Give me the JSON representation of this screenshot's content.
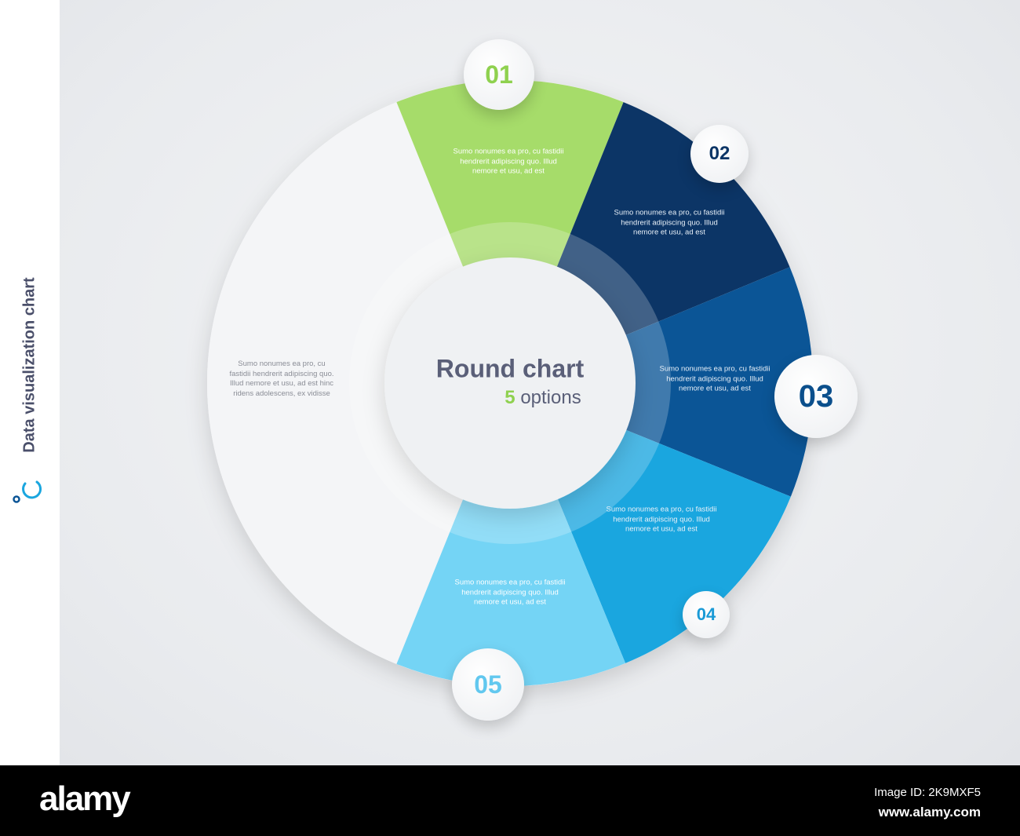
{
  "sidebar": {
    "title": "Data visualization chart",
    "icon": "loading-ring-icon"
  },
  "center": {
    "title": "Round chart",
    "count": "5",
    "count_label": "options"
  },
  "segments": [
    {
      "number": "01",
      "color": "#a6dc6a",
      "num_color": "#8fd14f",
      "text": "Sumo nonumes ea pro, cu fastidii hendrerit adipiscing quo. Illud nemore et usu, ad est"
    },
    {
      "number": "02",
      "color": "#0c3566",
      "num_color": "#0c3566",
      "text": "Sumo nonumes ea pro, cu fastidii hendrerit adipiscing quo. Illud nemore et usu, ad est"
    },
    {
      "number": "03",
      "color": "#0b5596",
      "num_color": "#0b4f8c",
      "text": "Sumo nonumes ea pro, cu fastidii hendrerit adipiscing quo. Illud nemore et usu, ad est"
    },
    {
      "number": "04",
      "color": "#1aa6df",
      "num_color": "#1a9ad6",
      "text": "Sumo nonumes ea pro, cu fastidii hendrerit adipiscing quo. Illud nemore et usu, ad est"
    },
    {
      "number": "05",
      "color": "#74d4f5",
      "num_color": "#62c8ef",
      "text": "Sumo nonumes ea pro, cu fastidii hendrerit adipiscing quo. Illud nemore et usu, ad est"
    }
  ],
  "remainder": {
    "color": "#f4f5f7",
    "text": "Sumo nonumes ea pro, cu fastidii hendrerit adipiscing quo. Illud nemore et usu, ad est hinc ridens adolescens, ex vidisse"
  },
  "footer": {
    "logo": "alamy",
    "image_id": "Image ID: 2K9MXF5",
    "url": "www.alamy.com"
  }
}
